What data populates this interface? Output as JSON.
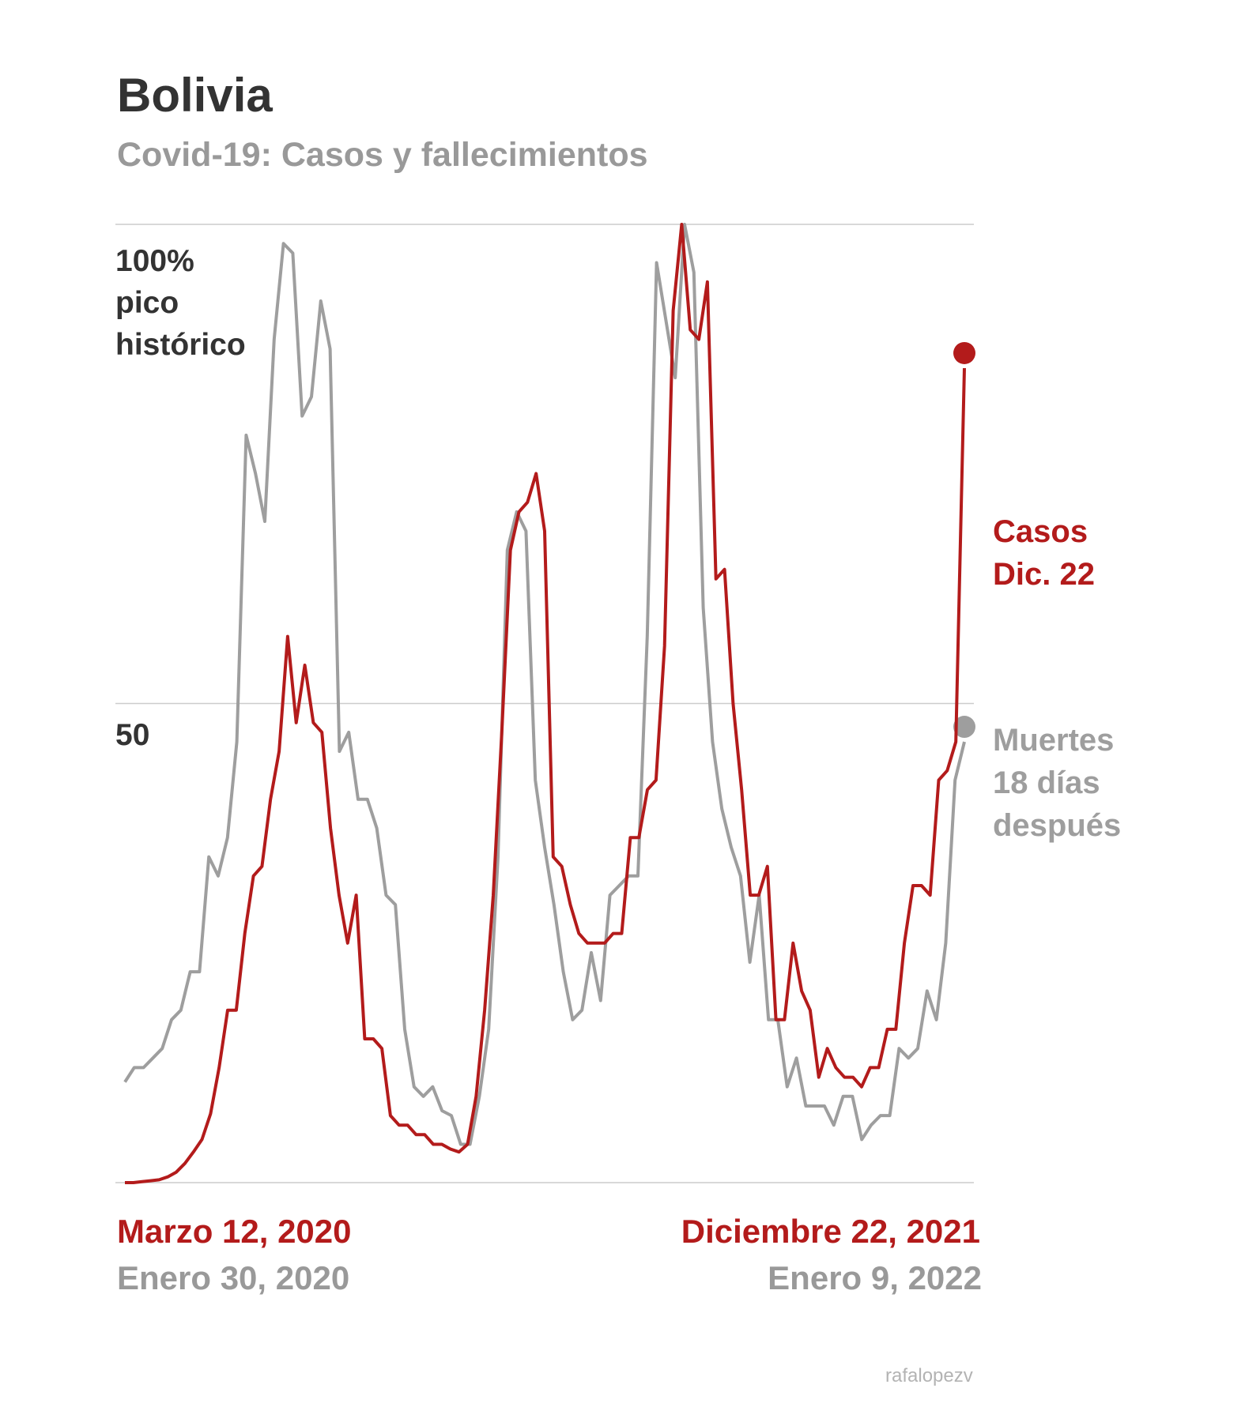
{
  "header": {
    "title": "Bolivia",
    "subtitle": "Covid-19: Casos y fallecimientos"
  },
  "credit": "rafalopezv",
  "colors": {
    "casos": "#b31b1b",
    "muertes": "#9e9e9e",
    "grid": "#cccccc",
    "axis_text": "#333333"
  },
  "chart_data": {
    "type": "line",
    "y_axis": {
      "label_lines": [
        "100%",
        "pico",
        "histórico"
      ],
      "tick_label_50": "50",
      "ylim": [
        0,
        100
      ],
      "gridlines": [
        0,
        50,
        100
      ]
    },
    "x_labels": {
      "start_casos": "Marzo 12, 2020",
      "start_muertes": "Enero 30, 2020",
      "end_casos": "Diciembre 22, 2021",
      "end_muertes": "Enero 9, 2022"
    },
    "legend": {
      "casos": [
        "Casos",
        "Dic. 22"
      ],
      "muertes": [
        "Muertes",
        "18 días",
        "después"
      ]
    },
    "series": [
      {
        "name": "Casos",
        "values": [
          0,
          0,
          0.1,
          0.2,
          0.3,
          0.6,
          1.1,
          2,
          3.2,
          4.5,
          7.2,
          12,
          18,
          18,
          26,
          32,
          33,
          40,
          45,
          57,
          48,
          54,
          48,
          47,
          37,
          30,
          25,
          30,
          15,
          15,
          14,
          7,
          6,
          6,
          5,
          5,
          4,
          4,
          3.5,
          3.2,
          4,
          9,
          18,
          30,
          47,
          66,
          70,
          71,
          74,
          68,
          34,
          33,
          29,
          26,
          25,
          25,
          25,
          26,
          26,
          36,
          36,
          41,
          42,
          56,
          91,
          100,
          89,
          88,
          94,
          63,
          64,
          50,
          41,
          30,
          30,
          33,
          17,
          17,
          25,
          20,
          18,
          11,
          14,
          12,
          11,
          11,
          10,
          12,
          12,
          16,
          16,
          25,
          31,
          31,
          30,
          42,
          43,
          46,
          85
        ]
      },
      {
        "name": "Muertes",
        "values": [
          10.5,
          12,
          12,
          13,
          14,
          17,
          18,
          22,
          22,
          34,
          32,
          36,
          46,
          78,
          74,
          69,
          88,
          98,
          97,
          80,
          82,
          92,
          87,
          45,
          47,
          40,
          40,
          37,
          30,
          29,
          16,
          10,
          9,
          10,
          7.5,
          7,
          4,
          4,
          9,
          16,
          34,
          66,
          70,
          68,
          42,
          35,
          29,
          22,
          17,
          18,
          24,
          19,
          30,
          31,
          32,
          32,
          57,
          96,
          90,
          84,
          100,
          95,
          60,
          46,
          39,
          35,
          32,
          23,
          30,
          17,
          17,
          10,
          13,
          8,
          8,
          8,
          6,
          9,
          9,
          4.5,
          6,
          7,
          7,
          14,
          13,
          14,
          20,
          17,
          25,
          42,
          46
        ]
      }
    ]
  }
}
